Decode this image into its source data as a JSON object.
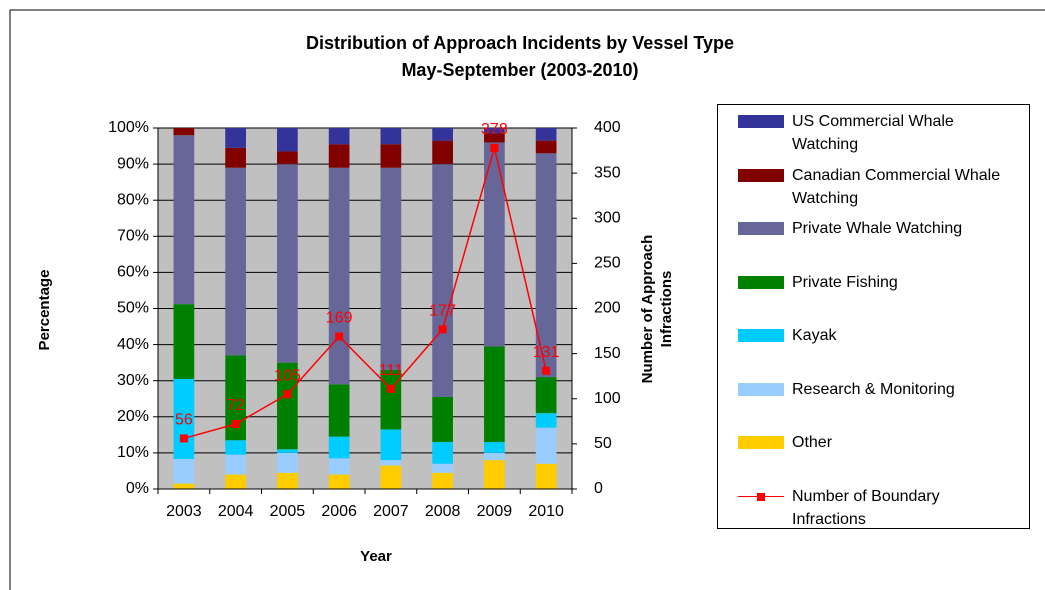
{
  "chart_data": {
    "type": "stacked-bar-line",
    "title": "Distribution of Approach Incidents by Vessel Type",
    "subtitle": "May-September (2003-2010)",
    "x_label": "Year",
    "y_label": "Percentage",
    "y2_label": "Number of Approach Infractions",
    "categories": [
      "2003",
      "2004",
      "2005",
      "2006",
      "2007",
      "2008",
      "2009",
      "2010"
    ],
    "series": [
      {
        "name": "Other",
        "color": "#ffcc00",
        "values": [
          1.5,
          4,
          4.5,
          4,
          6.5,
          4.5,
          8,
          7
        ]
      },
      {
        "name": "Research & Monitoring",
        "color": "#99ccff",
        "values": [
          6.8,
          5.5,
          5.5,
          4.5,
          1.5,
          2.5,
          2,
          10
        ]
      },
      {
        "name": "Kayak",
        "color": "#00ccff",
        "values": [
          22.2,
          4,
          1,
          6,
          8.5,
          6,
          3,
          4
        ]
      },
      {
        "name": "Private Fishing",
        "color": "#008000",
        "values": [
          20.7,
          23.5,
          24,
          14.5,
          16.5,
          12.5,
          26.5,
          10
        ]
      },
      {
        "name": "Private Whale Watching",
        "color": "#666699",
        "values": [
          46.8,
          52,
          55,
          60,
          56,
          64.5,
          56.5,
          62
        ]
      },
      {
        "name": "Canadian Commercial Whale Watching",
        "color": "#800000",
        "values": [
          2,
          5.5,
          3.5,
          6.5,
          6.5,
          6.5,
          2.5,
          3.5
        ]
      },
      {
        "name": "US Commercial Whale Watching",
        "color": "#333399",
        "values": [
          0,
          5.5,
          6.5,
          4.5,
          4.5,
          3.5,
          1.5,
          3.5
        ]
      },
      {
        "name": "Number of Boundary Infractions",
        "color": "#ff0000",
        "axis": "y2",
        "values": [
          56,
          72,
          105,
          169,
          111,
          177,
          378,
          131
        ]
      }
    ],
    "ylim": [
      0,
      100
    ],
    "yticks": [
      {
        "value": 0,
        "label": "0%"
      },
      {
        "value": 10,
        "label": "10%"
      },
      {
        "value": 20,
        "label": "20%"
      },
      {
        "value": 30,
        "label": "30%"
      },
      {
        "value": 40,
        "label": "40%"
      },
      {
        "value": 50,
        "label": "50%"
      },
      {
        "value": 60,
        "label": "60%"
      },
      {
        "value": 70,
        "label": "70%"
      },
      {
        "value": 80,
        "label": "80%"
      },
      {
        "value": 90,
        "label": "90%"
      },
      {
        "value": 100,
        "label": "100%"
      }
    ],
    "y2lim": [
      0,
      400
    ],
    "y2ticks": [
      0,
      50,
      100,
      150,
      200,
      250,
      300,
      350,
      400
    ],
    "plot_background": "#c0c0c0"
  }
}
